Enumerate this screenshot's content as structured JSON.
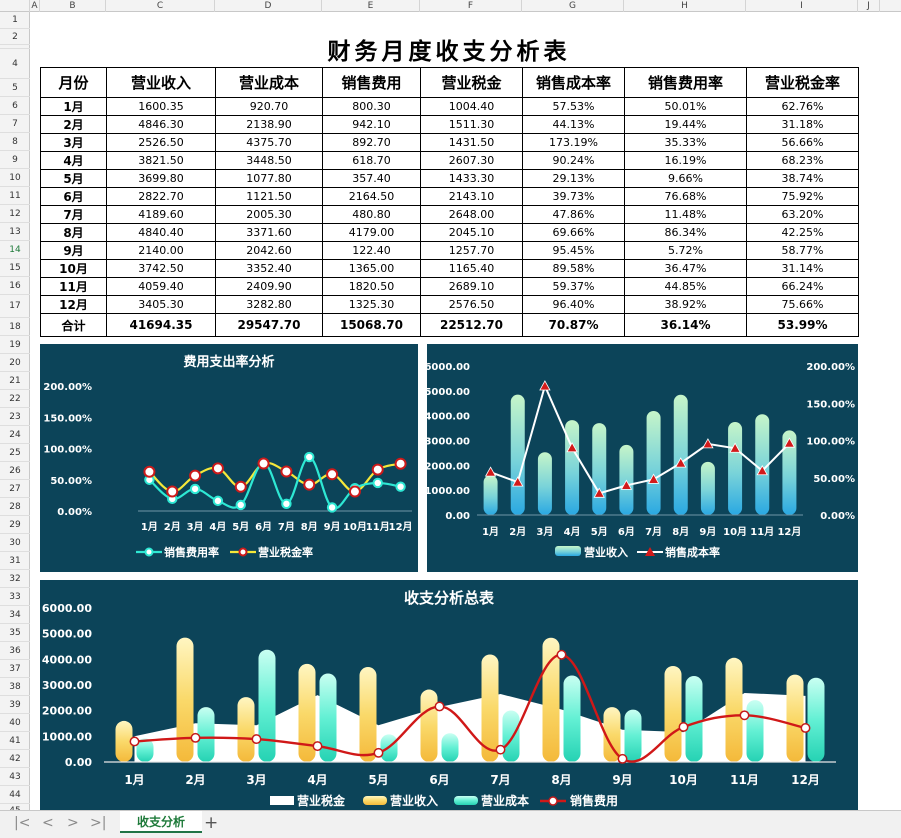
{
  "sheet": {
    "columns": [
      "A",
      "B",
      "C",
      "D",
      "E",
      "F",
      "G",
      "H",
      "I",
      "J"
    ],
    "rows": [
      "1",
      "2",
      "3",
      "4",
      "5",
      "6",
      "7",
      "8",
      "9",
      "10",
      "11",
      "12",
      "13",
      "14",
      "15",
      "16",
      "17",
      "18",
      "19",
      "20",
      "21",
      "22",
      "23",
      "24",
      "25",
      "26",
      "27",
      "28",
      "29",
      "30",
      "31",
      "32",
      "33",
      "34",
      "35",
      "36",
      "37",
      "38",
      "39",
      "40",
      "41",
      "42",
      "43",
      "44",
      "45"
    ],
    "selected_row": "14",
    "tab_name": "收支分析",
    "add_sheet": "+",
    "nav": [
      "|<",
      "<",
      ">",
      ">|"
    ]
  },
  "title": "财务月度收支分析表",
  "table": {
    "headers": [
      "月份",
      "营业收入",
      "营业成本",
      "销售费用",
      "营业税金",
      "销售成本率",
      "销售费用率",
      "营业税金率"
    ],
    "rows": [
      [
        "1月",
        "1600.35",
        "920.70",
        "800.30",
        "1004.40",
        "57.53%",
        "50.01%",
        "62.76%"
      ],
      [
        "2月",
        "4846.30",
        "2138.90",
        "942.10",
        "1511.30",
        "44.13%",
        "19.44%",
        "31.18%"
      ],
      [
        "3月",
        "2526.50",
        "4375.70",
        "892.70",
        "1431.50",
        "173.19%",
        "35.33%",
        "56.66%"
      ],
      [
        "4月",
        "3821.50",
        "3448.50",
        "618.70",
        "2607.30",
        "90.24%",
        "16.19%",
        "68.23%"
      ],
      [
        "5月",
        "3699.80",
        "1077.80",
        "357.40",
        "1433.30",
        "29.13%",
        "9.66%",
        "38.74%"
      ],
      [
        "6月",
        "2822.70",
        "1121.50",
        "2164.50",
        "2143.10",
        "39.73%",
        "76.68%",
        "75.92%"
      ],
      [
        "7月",
        "4189.60",
        "2005.30",
        "480.80",
        "2648.00",
        "47.86%",
        "11.48%",
        "63.20%"
      ],
      [
        "8月",
        "4840.40",
        "3371.60",
        "4179.00",
        "2045.10",
        "69.66%",
        "86.34%",
        "42.25%"
      ],
      [
        "9月",
        "2140.00",
        "2042.60",
        "122.40",
        "1257.70",
        "95.45%",
        "5.72%",
        "58.77%"
      ],
      [
        "10月",
        "3742.50",
        "3352.40",
        "1365.00",
        "1165.40",
        "89.58%",
        "36.47%",
        "31.14%"
      ],
      [
        "11月",
        "4059.40",
        "2409.90",
        "1820.50",
        "2689.10",
        "59.37%",
        "44.85%",
        "66.24%"
      ],
      [
        "12月",
        "3405.30",
        "3282.80",
        "1325.30",
        "2576.50",
        "96.40%",
        "38.92%",
        "75.66%"
      ]
    ],
    "total": [
      "合计",
      "41694.35",
      "29547.70",
      "15068.70",
      "22512.70",
      "70.87%",
      "36.14%",
      "53.99%"
    ]
  },
  "chart_data": [
    {
      "type": "line",
      "title": "费用支出率分析",
      "categories": [
        "1月",
        "2月",
        "3月",
        "4月",
        "5月",
        "6月",
        "7月",
        "8月",
        "9月",
        "10月",
        "11月",
        "12月"
      ],
      "series": [
        {
          "name": "销售费用率",
          "values": [
            50.01,
            19.44,
            35.33,
            16.19,
            9.66,
            76.68,
            11.48,
            86.34,
            5.72,
            36.47,
            44.85,
            38.92
          ],
          "color": "#2ee8d4"
        },
        {
          "name": "营业税金率",
          "values": [
            62.76,
            31.18,
            56.66,
            68.23,
            38.74,
            75.92,
            63.2,
            42.25,
            58.77,
            31.14,
            66.24,
            75.66
          ],
          "color": "#f5e83a"
        }
      ],
      "ylim": [
        0,
        200
      ],
      "yticks": [
        "0.00%",
        "50.00%",
        "100.00%",
        "150.00%",
        "200.00%"
      ],
      "legend": "bottom"
    },
    {
      "type": "bar",
      "title": "",
      "categories": [
        "1月",
        "2月",
        "3月",
        "4月",
        "5月",
        "6月",
        "7月",
        "8月",
        "9月",
        "10月",
        "11月",
        "12月"
      ],
      "series": [
        {
          "name": "营业收入",
          "values": [
            1600.35,
            4846.3,
            2526.5,
            3821.5,
            3699.8,
            2822.7,
            4189.6,
            4840.4,
            2140.0,
            3742.5,
            4059.4,
            3405.3
          ],
          "axis": "left"
        },
        {
          "name": "销售成本率",
          "values": [
            57.53,
            44.13,
            173.19,
            90.24,
            29.13,
            39.73,
            47.86,
            69.66,
            95.45,
            89.58,
            59.37,
            96.4
          ],
          "axis": "right",
          "color": "#ffffff"
        }
      ],
      "ylim": [
        0,
        6000
      ],
      "y2lim": [
        0,
        200
      ],
      "yticks": [
        "0.00",
        "1000.00",
        "2000.00",
        "3000.00",
        "4000.00",
        "5000.00",
        "6000.00"
      ],
      "y2ticks": [
        "0.00%",
        "50.00%",
        "100.00%",
        "150.00%",
        "200.00%"
      ],
      "legend": "bottom"
    },
    {
      "type": "bar",
      "title": "收支分析总表",
      "categories": [
        "1月",
        "2月",
        "3月",
        "4月",
        "5月",
        "6月",
        "7月",
        "8月",
        "9月",
        "10月",
        "11月",
        "12月"
      ],
      "series": [
        {
          "name": "营业税金",
          "values": [
            1004.4,
            1511.3,
            1431.5,
            2607.3,
            1433.3,
            2143.1,
            2648.0,
            2045.1,
            1257.7,
            1165.4,
            2689.1,
            2576.5
          ],
          "kind": "area",
          "color": "#ffffff"
        },
        {
          "name": "营业收入",
          "values": [
            1600.35,
            4846.3,
            2526.5,
            3821.5,
            3699.8,
            2822.7,
            4189.6,
            4840.4,
            2140.0,
            3742.5,
            4059.4,
            3405.3
          ],
          "kind": "bar",
          "color": "#f7d460"
        },
        {
          "name": "营业成本",
          "values": [
            920.7,
            2138.9,
            4375.7,
            3448.5,
            1077.8,
            1121.5,
            2005.3,
            3371.6,
            2042.6,
            3352.4,
            2409.9,
            3282.8
          ],
          "kind": "bar",
          "color": "#5ef0d0"
        },
        {
          "name": "销售费用",
          "values": [
            800.3,
            942.1,
            892.7,
            618.7,
            357.4,
            2164.5,
            480.8,
            4179.0,
            122.4,
            1365.0,
            1820.5,
            1325.3
          ],
          "kind": "line",
          "color": "#d01818"
        }
      ],
      "ylim": [
        0,
        6000
      ],
      "yticks": [
        "0.00",
        "1000.00",
        "2000.00",
        "3000.00",
        "4000.00",
        "5000.00",
        "6000.00"
      ],
      "legend": "bottom"
    }
  ]
}
